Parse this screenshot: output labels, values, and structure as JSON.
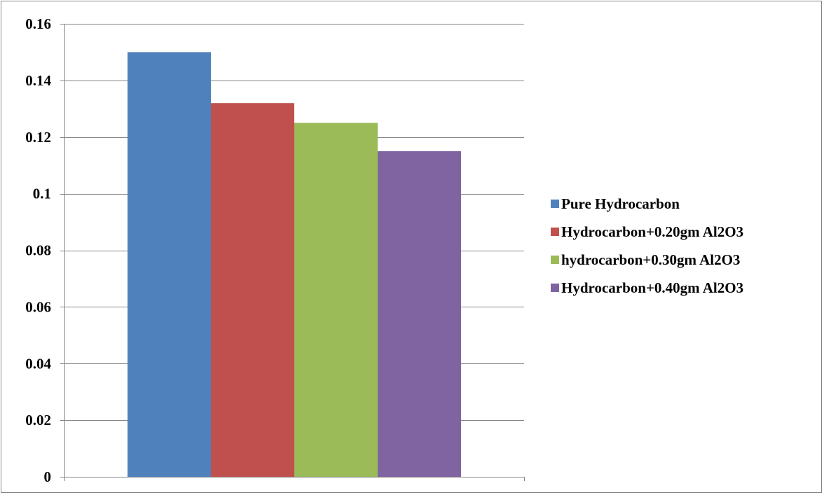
{
  "chart_data": {
    "type": "bar",
    "categories": [
      ""
    ],
    "series": [
      {
        "name": "Pure Hydrocarbon",
        "values": [
          0.15
        ],
        "color": "#4F81BD"
      },
      {
        "name": "Hydrocarbon+0.20gm Al2O3",
        "values": [
          0.132
        ],
        "color": "#C0504D"
      },
      {
        "name": "hydrocarbon+0.30gm Al2O3",
        "values": [
          0.125
        ],
        "color": "#9BBB59"
      },
      {
        "name": "Hydrocarbon+0.40gm Al2O3",
        "values": [
          0.115
        ],
        "color": "#8064A2"
      }
    ],
    "ylim": [
      0,
      0.16
    ],
    "y_ticks": [
      0,
      0.02,
      0.04,
      0.06,
      0.08,
      0.1,
      0.12,
      0.14,
      0.16
    ],
    "y_tick_labels": [
      "0",
      "0.02",
      "0.04",
      "0.06",
      "0.08",
      "0.1",
      "0.12",
      "0.14",
      "0.16"
    ],
    "grid": true,
    "legend_position": "right",
    "gridline_color": "#868686",
    "axis_color": "#868686"
  }
}
